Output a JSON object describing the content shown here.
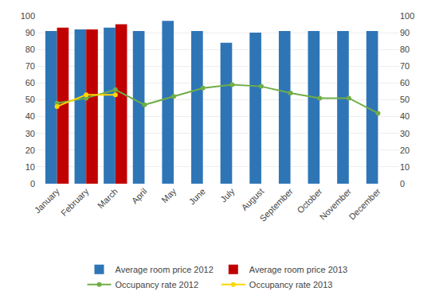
{
  "chart_data": {
    "type": "bar",
    "categories": [
      "January",
      "February",
      "March",
      "April",
      "May",
      "June",
      "July",
      "August",
      "September",
      "October",
      "November",
      "December"
    ],
    "series": [
      {
        "name": "Average room price 2012",
        "type": "bar",
        "color": "#2E75B6",
        "values": [
          91,
          92,
          93,
          91,
          97,
          91,
          84,
          90,
          91,
          91,
          91,
          91
        ]
      },
      {
        "name": "Average room price 2013",
        "type": "bar",
        "color": "#C00000",
        "values": [
          93,
          92,
          95,
          null,
          null,
          null,
          null,
          null,
          null,
          null,
          null,
          null
        ]
      },
      {
        "name": "Occupancy rate 2012",
        "type": "line",
        "color": "#70AD47",
        "marker": "circle",
        "values": [
          48,
          51,
          56,
          47,
          52,
          57,
          59,
          58,
          54,
          51,
          51,
          42
        ]
      },
      {
        "name": "Occupancy rate 2013",
        "type": "line",
        "color": "#FFD700",
        "marker": "circle",
        "values": [
          46,
          53,
          53,
          null,
          null,
          null,
          null,
          null,
          null,
          null,
          null,
          null
        ]
      }
    ],
    "ylim": [
      0,
      100
    ],
    "yticks": [
      0,
      10,
      20,
      30,
      40,
      50,
      60,
      70,
      80,
      90,
      100
    ],
    "y2lim": [
      0,
      100
    ],
    "y2ticks": [
      0,
      10,
      20,
      30,
      40,
      50,
      60,
      70,
      80,
      90,
      100
    ],
    "grid": true,
    "legend": "bottom"
  }
}
